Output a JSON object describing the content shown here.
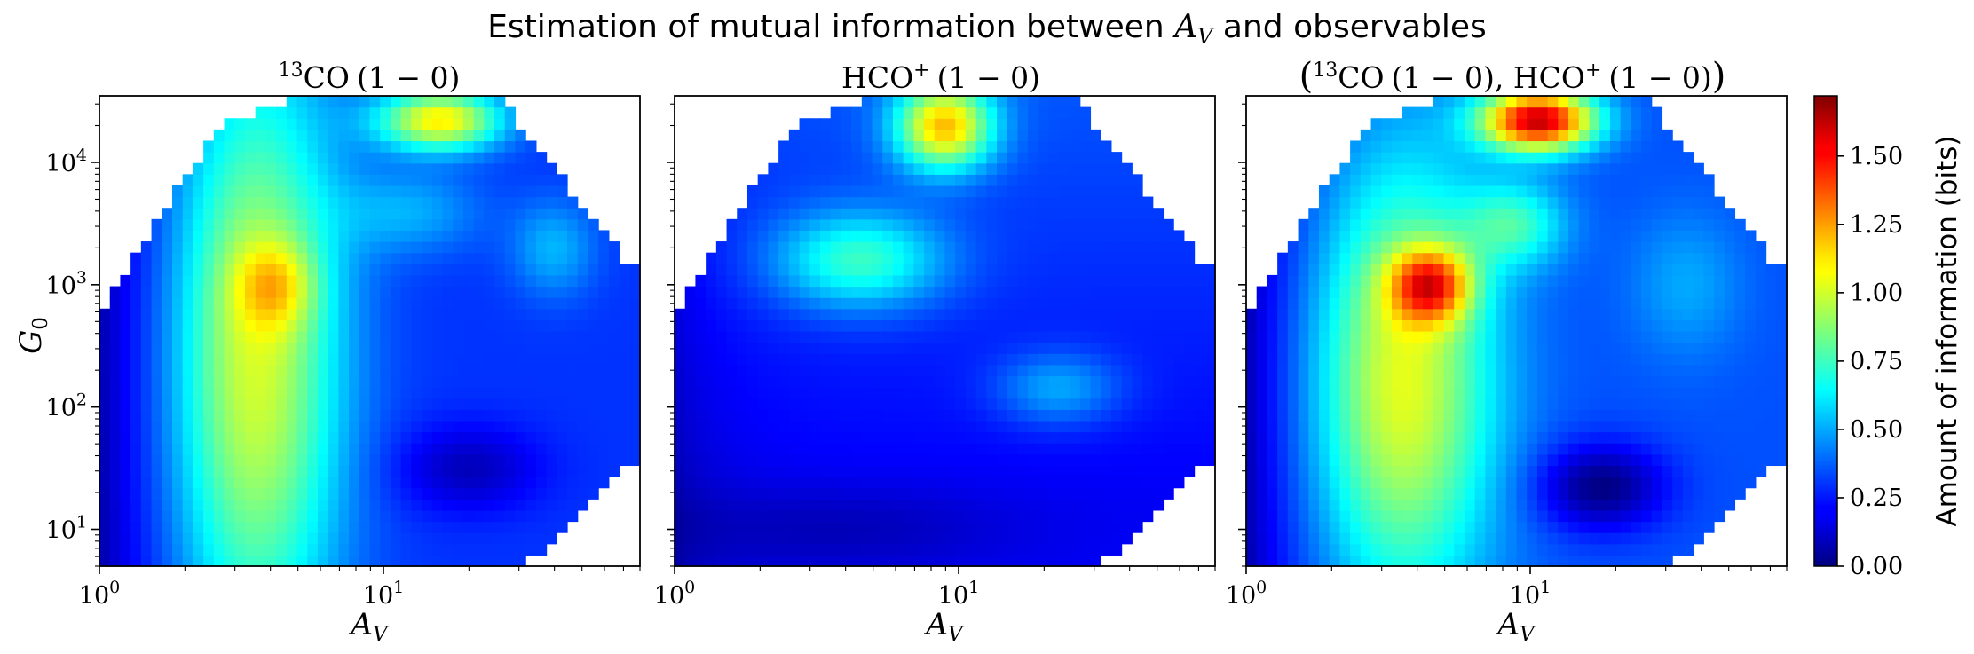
{
  "figure": {
    "suptitle": "Estimation of mutual information between A_V and observables",
    "suptitle_prefix": "Estimation of mutual information between ",
    "suptitle_var": "A",
    "suptitle_var_sub": "V",
    "suptitle_suffix": " and observables"
  },
  "chart_data": [
    {
      "type": "heatmap",
      "title": "13CO (1 − 0)",
      "title_parts": {
        "sup": "13",
        "main": "CO",
        "transition": "(1 − 0)"
      },
      "xlabel": "A_V",
      "ylabel": "G_0",
      "xscale": "log",
      "yscale": "log",
      "xlim": [
        1,
        80
      ],
      "ylim": [
        5,
        35000
      ],
      "x_ticks": [
        {
          "value": 1,
          "label": "10^0"
        },
        {
          "value": 10,
          "label": "10^1"
        }
      ],
      "y_ticks": [
        {
          "value": 10,
          "label": "10^1"
        },
        {
          "value": 100,
          "label": "10^2"
        },
        {
          "value": 1000,
          "label": "10^3"
        },
        {
          "value": 10000,
          "label": "10^4"
        }
      ],
      "colormap": "jet",
      "value_range": [
        0,
        1.72
      ],
      "summary": "Moderate information (~0.8–1.1 bits) for A_V between ~2 and ~6 across all G_0, strongest near A_V≈4, G_0≈1000 and at G_0>10^4, A_V≈10–25; low values at A_V<1.5 and A_V>10 at low G_0."
    },
    {
      "type": "heatmap",
      "title": "HCO+ (1 − 0)",
      "title_parts": {
        "main": "HCO",
        "sup": "+",
        "transition": "(1 − 0)"
      },
      "xlabel": "A_V",
      "xscale": "log",
      "yscale": "log",
      "xlim": [
        1,
        80
      ],
      "ylim": [
        5,
        35000
      ],
      "x_ticks": [
        {
          "value": 1,
          "label": "10^0"
        },
        {
          "value": 10,
          "label": "10^1"
        }
      ],
      "colormap": "jet",
      "value_range": [
        0,
        1.72
      ],
      "summary": "Mostly low information (<0.4 bits); higher values (~0.7–1.1 bits) only at G_0>1000 around A_V≈5–15."
    },
    {
      "type": "heatmap",
      "title": "(13CO (1 − 0), HCO+ (1 − 0))",
      "title_parts": {
        "open": "(",
        "sup1": "13",
        "main1": "CO",
        "transition1": "(1 − 0)",
        "sep": ", ",
        "main2": "HCO",
        "sup2": "+",
        "transition2": "(1 − 0)",
        "close": ")"
      },
      "xlabel": "A_V",
      "xscale": "log",
      "yscale": "log",
      "xlim": [
        1,
        80
      ],
      "ylim": [
        5,
        35000
      ],
      "x_ticks": [
        {
          "value": 1,
          "label": "10^0"
        },
        {
          "value": 10,
          "label": "10^1"
        }
      ],
      "colormap": "jet",
      "value_range": [
        0,
        1.72
      ],
      "summary": "Highest information: peak ~1.7 bits at G_0>10^4, A_V≈8–15; secondary maximum ~1.5 bits near A_V≈4, G_0≈1000; ~0.9–1.1 bits band for A_V 2–6."
    }
  ],
  "colorbar": {
    "label": "Amount of information (bits)",
    "colormap": "jet",
    "range": [
      0,
      1.72
    ],
    "ticks": [
      {
        "value": 0.0,
        "label": "0.00"
      },
      {
        "value": 0.25,
        "label": "0.25"
      },
      {
        "value": 0.5,
        "label": "0.50"
      },
      {
        "value": 0.75,
        "label": "0.75"
      },
      {
        "value": 1.0,
        "label": "1.00"
      },
      {
        "value": 1.25,
        "label": "1.25"
      },
      {
        "value": 1.5,
        "label": "1.50"
      }
    ]
  }
}
